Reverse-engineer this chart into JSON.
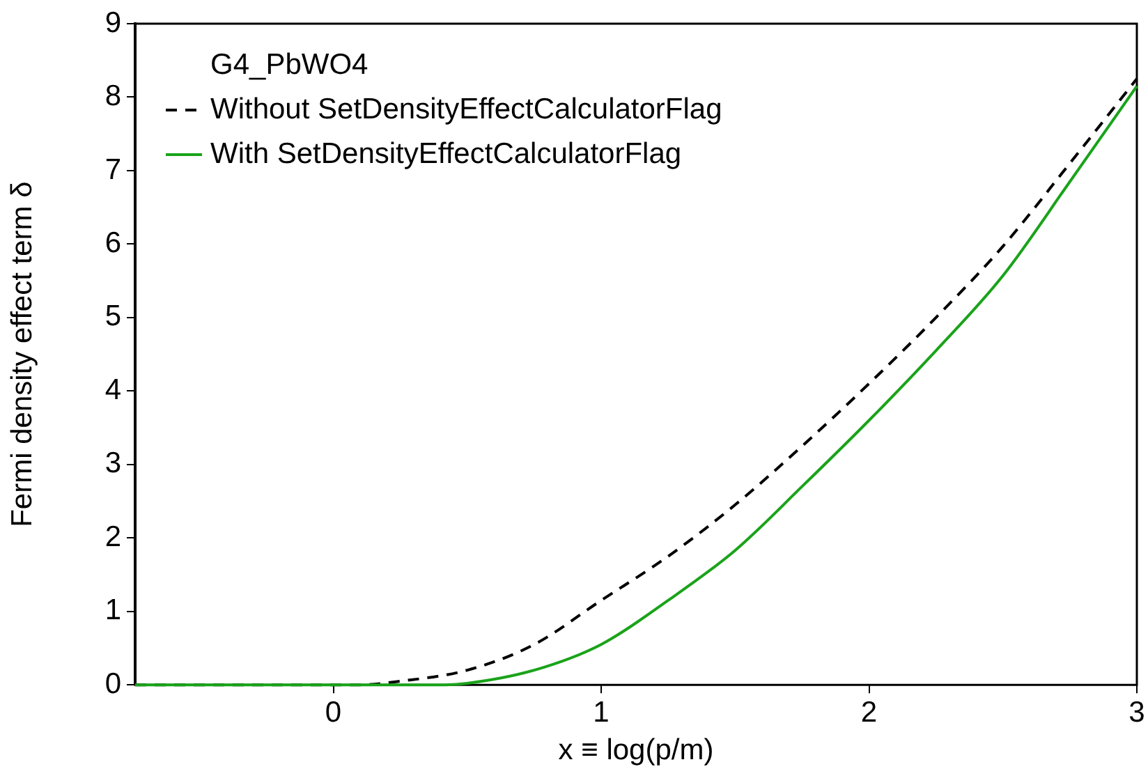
{
  "chart_data": {
    "type": "line",
    "xlabel": "x ≡ log(p/m)",
    "ylabel": "Fermi density effect term δ",
    "legend_title": "G4_PbWO4",
    "legend": "top left",
    "grid": false,
    "marker": "none",
    "xlim": [
      -0.74,
      3
    ],
    "xticks": [
      0,
      1,
      2,
      3
    ],
    "ylim": [
      0,
      9
    ],
    "yticks": [
      0,
      1,
      2,
      3,
      4,
      5,
      6,
      7,
      8,
      9
    ],
    "series": [
      {
        "name": "Without SetDensityEffectCalculatorFlag",
        "color": "#000000",
        "line_style": "dashed",
        "x": [
          -0.74,
          0,
          0.1,
          0.25,
          0.5,
          0.75,
          1,
          1.25,
          1.5,
          1.75,
          2,
          2.25,
          2.5,
          2.75,
          3
        ],
        "values": [
          0,
          0,
          0,
          0.05,
          0.2,
          0.55,
          1.15,
          1.75,
          2.45,
          3.25,
          4.1,
          5.0,
          5.97,
          7.1,
          8.25
        ]
      },
      {
        "name": "With SetDensityEffectCalculatorFlag",
        "color": "#1aa31a",
        "line_style": "solid",
        "x": [
          -0.74,
          0,
          0.25,
          0.42,
          0.5,
          0.75,
          1,
          1.25,
          1.5,
          1.75,
          2,
          2.25,
          2.5,
          2.75,
          3
        ],
        "values": [
          0,
          0,
          0,
          0,
          0.02,
          0.2,
          0.55,
          1.15,
          1.83,
          2.7,
          3.6,
          4.55,
          5.57,
          6.85,
          8.15
        ]
      }
    ]
  }
}
